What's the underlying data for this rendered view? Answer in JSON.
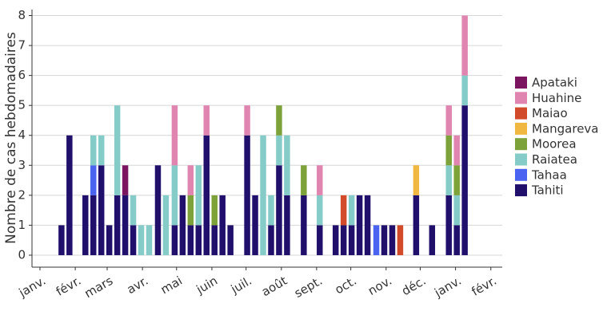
{
  "chart_data": {
    "type": "stacked_bar",
    "ylabel": "Nombre de cas hebdomadaires",
    "x": [
      2.7,
      3.7,
      5.7,
      6.7,
      7.7,
      8.7,
      9.7,
      10.7,
      11.7,
      12.7,
      13.7,
      14.8,
      15.8,
      16.9,
      17.9,
      18.9,
      19.9,
      20.9,
      21.9,
      22.9,
      23.9,
      26.0,
      27.0,
      28.0,
      29.0,
      30.0,
      31.0,
      33.1,
      35.1,
      37.1,
      38.1,
      39.1,
      40.1,
      41.1,
      42.2,
      43.2,
      44.2,
      45.2,
      47.2,
      49.2,
      51.3,
      52.3,
      53.3
    ],
    "series": [
      {
        "name": "Apataki",
        "color": "#7b1560",
        "values": [
          0,
          0,
          0,
          0,
          0,
          0,
          0,
          1,
          0,
          0,
          0,
          0,
          0,
          0,
          0,
          0,
          0,
          0,
          0,
          0,
          0,
          0,
          0,
          0,
          0,
          0,
          0,
          0,
          0,
          0,
          0,
          0,
          0,
          0,
          0,
          0,
          0,
          0,
          0,
          0,
          0,
          0,
          0
        ]
      },
      {
        "name": "Huahine",
        "color": "#e085b0",
        "values": [
          0,
          0,
          0,
          0,
          0,
          0,
          0,
          0,
          0,
          0,
          0,
          0,
          0,
          2,
          0,
          1,
          0,
          1,
          0,
          0,
          0,
          1,
          0,
          0,
          0,
          0,
          0,
          0,
          1,
          0,
          0,
          0,
          0,
          0,
          0,
          0,
          0,
          0,
          0,
          0,
          1,
          1,
          2
        ]
      },
      {
        "name": "Maiao",
        "color": "#d14a2a",
        "values": [
          0,
          0,
          0,
          0,
          0,
          0,
          0,
          0,
          0,
          0,
          0,
          0,
          0,
          0,
          0,
          0,
          0,
          0,
          0,
          0,
          0,
          0,
          0,
          0,
          0,
          0,
          0,
          0,
          0,
          0,
          1,
          0,
          0,
          0,
          0,
          0,
          0,
          1,
          0,
          0,
          0,
          0,
          0
        ]
      },
      {
        "name": "Mangareva",
        "color": "#f0b840",
        "values": [
          0,
          0,
          0,
          0,
          0,
          0,
          0,
          0,
          0,
          0,
          0,
          0,
          0,
          0,
          0,
          0,
          0,
          0,
          0,
          0,
          0,
          0,
          0,
          0,
          0,
          0,
          0,
          0,
          0,
          0,
          0,
          0,
          0,
          0,
          0,
          0,
          0,
          0,
          1,
          0,
          0,
          0,
          0
        ]
      },
      {
        "name": "Moorea",
        "color": "#7da23a",
        "values": [
          0,
          0,
          0,
          0,
          0,
          0,
          0,
          0,
          0,
          0,
          0,
          0,
          0,
          0,
          0,
          1,
          0,
          0,
          1,
          0,
          0,
          0,
          0,
          0,
          0,
          1,
          0,
          1,
          0,
          0,
          0,
          0,
          0,
          0,
          0,
          0,
          0,
          0,
          0,
          0,
          1,
          1,
          0
        ]
      },
      {
        "name": "Raiatea",
        "color": "#85cbc8",
        "values": [
          0,
          0,
          0,
          1,
          1,
          0,
          3,
          0,
          1,
          1,
          1,
          0,
          2,
          2,
          0,
          0,
          2,
          0,
          0,
          0,
          0,
          0,
          0,
          4,
          1,
          1,
          2,
          0,
          1,
          0,
          0,
          1,
          0,
          0,
          0,
          0,
          0,
          0,
          0,
          0,
          1,
          1,
          1
        ]
      },
      {
        "name": "Tahaa",
        "color": "#4a63f0",
        "values": [
          0,
          0,
          0,
          1,
          0,
          0,
          0,
          0,
          0,
          0,
          0,
          0,
          0,
          0,
          0,
          0,
          0,
          0,
          0,
          0,
          0,
          0,
          0,
          0,
          0,
          0,
          0,
          0,
          0,
          0,
          0,
          0,
          0,
          0,
          1,
          0,
          0,
          0,
          0,
          0,
          0,
          0,
          0
        ]
      },
      {
        "name": "Tahiti",
        "color": "#21106b",
        "values": [
          1,
          4,
          2,
          2,
          3,
          1,
          2,
          2,
          1,
          0,
          0,
          3,
          0,
          1,
          2,
          1,
          1,
          4,
          1,
          2,
          1,
          4,
          2,
          0,
          1,
          3,
          2,
          2,
          1,
          1,
          1,
          1,
          2,
          2,
          0,
          1,
          1,
          0,
          2,
          1,
          2,
          1,
          5
        ]
      }
    ],
    "xlim": [
      -1.0,
      58.0
    ],
    "xticks": [
      {
        "value": 0,
        "label": "janv."
      },
      {
        "value": 4.43,
        "label": "févr."
      },
      {
        "value": 8.43,
        "label": "mars"
      },
      {
        "value": 12.86,
        "label": "avr."
      },
      {
        "value": 17.14,
        "label": "mai"
      },
      {
        "value": 21.57,
        "label": "juin"
      },
      {
        "value": 25.86,
        "label": "juil."
      },
      {
        "value": 30.29,
        "label": "août"
      },
      {
        "value": 34.71,
        "label": "sept."
      },
      {
        "value": 39.0,
        "label": "oct."
      },
      {
        "value": 43.43,
        "label": "nov."
      },
      {
        "value": 47.71,
        "label": "déc."
      },
      {
        "value": 52.14,
        "label": "janv."
      },
      {
        "value": 56.57,
        "label": "févr."
      }
    ],
    "ylim": [
      -0.4,
      8.2
    ],
    "yticks": [
      0,
      1,
      2,
      3,
      4,
      5,
      6,
      7,
      8
    ],
    "grid": true,
    "legend": "right"
  }
}
